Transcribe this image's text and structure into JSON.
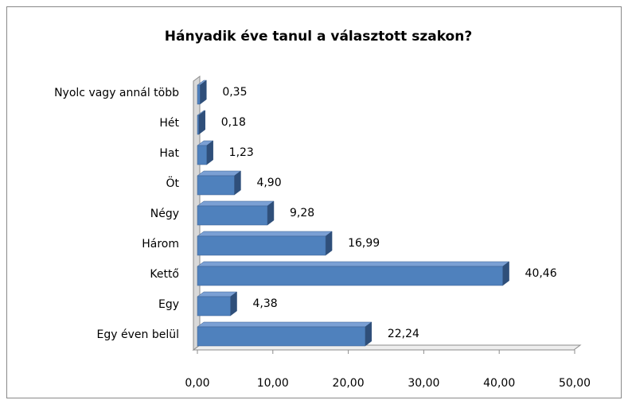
{
  "chart_data": {
    "type": "bar",
    "orientation": "horizontal",
    "title": "Hányadik éve tanul a választott szakon?",
    "categories": [
      "Egy éven belül",
      "Egy",
      "Kettő",
      "Három",
      "Négy",
      "Öt",
      "Hat",
      "Hét",
      "Nyolc vagy annál több"
    ],
    "values": [
      22.24,
      4.38,
      40.46,
      16.99,
      9.28,
      4.9,
      1.23,
      0.18,
      0.35
    ],
    "value_labels": [
      "22,24",
      "4,38",
      "40,46",
      "16,99",
      "9,28",
      "4,90",
      "1,23",
      "0,18",
      "0,35"
    ],
    "color": "#4f81bd",
    "xlim": [
      0,
      50
    ],
    "xticks": [
      {
        "value": 0,
        "label": "0,00"
      },
      {
        "value": 10,
        "label": "10,00"
      },
      {
        "value": 20,
        "label": "20,00"
      },
      {
        "value": 30,
        "label": "30,00"
      },
      {
        "value": 40,
        "label": "40,00"
      },
      {
        "value": 50,
        "label": "50,00"
      }
    ],
    "grid": false
  }
}
